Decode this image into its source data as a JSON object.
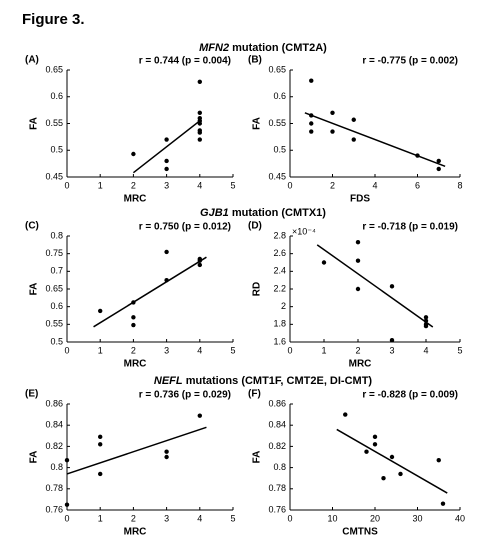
{
  "figure_title": "Figure 3.",
  "sections": [
    {
      "gene": "MFN2",
      "rest": "mutation (CMT2A)"
    },
    {
      "gene": "GJB1",
      "rest": "mutation (CMTX1)"
    },
    {
      "gene": "NEFL",
      "rest": "mutations (CMT1F, CMT2E, DI-CMT)"
    }
  ],
  "chart_data": [
    {
      "type": "scatter",
      "panel": "(A)",
      "stat": "r = 0.744 (p = 0.004)",
      "xlabel": "MRC",
      "ylabel": "FA",
      "color": "#000000",
      "x": [
        2,
        3,
        3,
        3,
        4,
        4,
        4,
        4,
        4,
        4,
        4,
        4
      ],
      "y": [
        0.493,
        0.52,
        0.48,
        0.465,
        0.628,
        0.57,
        0.56,
        0.555,
        0.55,
        0.537,
        0.533,
        0.52
      ],
      "fit": {
        "x": [
          2,
          4
        ],
        "y": [
          0.458,
          0.555
        ]
      },
      "xlim": [
        0,
        5
      ],
      "xticks": [
        0,
        1,
        2,
        3,
        4,
        5
      ],
      "ylim": [
        0.45,
        0.65
      ],
      "yticks": [
        0.45,
        0.5,
        0.55,
        0.6,
        0.65
      ]
    },
    {
      "type": "scatter",
      "panel": "(B)",
      "stat": "r = -0.775 (p = 0.002)",
      "xlabel": "FDS",
      "ylabel": "FA",
      "color": "#000000",
      "x": [
        1,
        1,
        1,
        1,
        2,
        2,
        3,
        3,
        6,
        7,
        7
      ],
      "y": [
        0.63,
        0.565,
        0.55,
        0.535,
        0.57,
        0.535,
        0.557,
        0.52,
        0.49,
        0.48,
        0.465
      ],
      "fit": {
        "x": [
          0.7,
          7.3
        ],
        "y": [
          0.57,
          0.47
        ]
      },
      "xlim": [
        0,
        8
      ],
      "xticks": [
        0,
        2,
        4,
        6,
        8
      ],
      "ylim": [
        0.45,
        0.65
      ],
      "yticks": [
        0.45,
        0.5,
        0.55,
        0.6,
        0.65
      ]
    },
    {
      "type": "scatter",
      "panel": "(C)",
      "stat": "r = 0.750 (p = 0.012)",
      "xlabel": "MRC",
      "ylabel": "FA",
      "color": "#000000",
      "x": [
        1,
        2,
        2,
        2,
        3,
        3,
        4,
        4,
        4
      ],
      "y": [
        0.588,
        0.612,
        0.57,
        0.548,
        0.755,
        0.675,
        0.735,
        0.73,
        0.718
      ],
      "fit": {
        "x": [
          0.8,
          4.2
        ],
        "y": [
          0.543,
          0.74
        ]
      },
      "xlim": [
        0,
        5
      ],
      "xticks": [
        0,
        1,
        2,
        3,
        4,
        5
      ],
      "ylim": [
        0.5,
        0.8
      ],
      "yticks": [
        0.5,
        0.55,
        0.6,
        0.65,
        0.7,
        0.75,
        0.8
      ]
    },
    {
      "type": "scatter",
      "panel": "(D)",
      "stat": "r = -0.718 (p = 0.019)",
      "xlabel": "MRC",
      "ylabel": "RD",
      "multiplier": "×10⁻⁴",
      "color": "#000000",
      "x": [
        1,
        2,
        2,
        2,
        3,
        3,
        4,
        4,
        4,
        4
      ],
      "y": [
        2.5,
        2.73,
        2.52,
        2.2,
        2.23,
        1.62,
        1.88,
        1.84,
        1.8,
        1.78
      ],
      "fit": {
        "x": [
          0.8,
          4.2
        ],
        "y": [
          2.7,
          1.77
        ]
      },
      "xlim": [
        0,
        5
      ],
      "xticks": [
        0,
        1,
        2,
        3,
        4,
        5
      ],
      "ylim": [
        1.6,
        2.8
      ],
      "yticks": [
        1.6,
        1.8,
        2,
        2.2,
        2.4,
        2.6,
        2.8
      ]
    },
    {
      "type": "scatter",
      "panel": "(E)",
      "stat": "r = 0.736 (p = 0.029)",
      "xlabel": "MRC",
      "ylabel": "FA",
      "color": "#000000",
      "x": [
        0,
        0,
        1,
        1,
        1,
        3,
        3,
        4
      ],
      "y": [
        0.807,
        0.765,
        0.829,
        0.822,
        0.794,
        0.815,
        0.81,
        0.849
      ],
      "fit": {
        "x": [
          0,
          4.2
        ],
        "y": [
          0.794,
          0.838
        ]
      },
      "xlim": [
        0,
        5
      ],
      "xticks": [
        0,
        1,
        2,
        3,
        4,
        5
      ],
      "ylim": [
        0.76,
        0.86
      ],
      "yticks": [
        0.76,
        0.78,
        0.8,
        0.82,
        0.84,
        0.86
      ]
    },
    {
      "type": "scatter",
      "panel": "(F)",
      "stat": "r = -0.828 (p = 0.009)",
      "xlabel": "CMTNS",
      "ylabel": "FA",
      "color": "#000000",
      "x": [
        13,
        18,
        20,
        20,
        22,
        24,
        26,
        35,
        36
      ],
      "y": [
        0.85,
        0.815,
        0.829,
        0.822,
        0.79,
        0.81,
        0.794,
        0.807,
        0.766
      ],
      "fit": {
        "x": [
          11,
          37
        ],
        "y": [
          0.836,
          0.776
        ]
      },
      "xlim": [
        0,
        40
      ],
      "xticks": [
        0,
        10,
        20,
        30,
        40
      ],
      "ylim": [
        0.76,
        0.86
      ],
      "yticks": [
        0.76,
        0.78,
        0.8,
        0.82,
        0.84,
        0.86
      ]
    }
  ]
}
